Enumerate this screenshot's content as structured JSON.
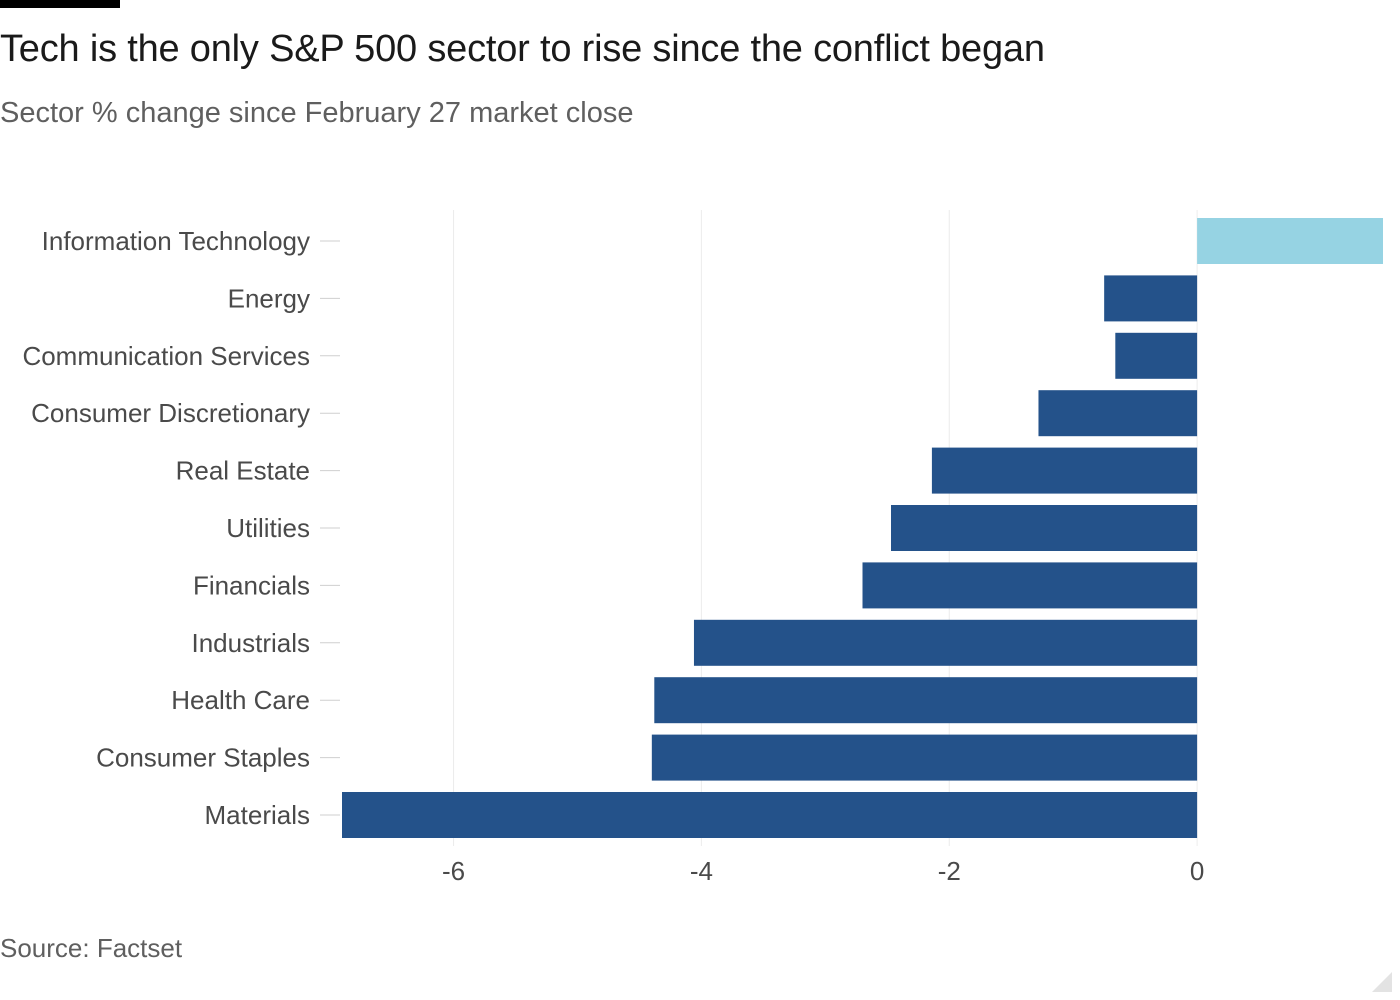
{
  "chart_data": {
    "type": "bar",
    "orientation": "horizontal",
    "title": "Tech is the only S&P 500 sector to rise since the conflict began",
    "subtitle": "Sector % change since February 27 market close",
    "source": "Source: Factset",
    "xlabel": "",
    "ylabel": "",
    "xlim": [
      -6.9,
      1.5
    ],
    "xticks": [
      -6,
      -4,
      -2,
      0
    ],
    "xtick_labels": [
      "-6",
      "-4",
      "-2",
      "0"
    ],
    "grid": true,
    "categories": [
      "Information Technology",
      "Energy",
      "Communication Services",
      "Consumer Discretionary",
      "Real Estate",
      "Utilities",
      "Financials",
      "Industrials",
      "Health Care",
      "Consumer Staples",
      "Materials"
    ],
    "values": [
      1.5,
      -0.75,
      -0.66,
      -1.28,
      -2.14,
      -2.47,
      -2.7,
      -4.06,
      -4.38,
      -4.4,
      -6.9
    ],
    "colors": {
      "positive": "#96d3e3",
      "negative": "#24528a",
      "grid": "#ececec",
      "tick": "#cfcfcf"
    }
  }
}
